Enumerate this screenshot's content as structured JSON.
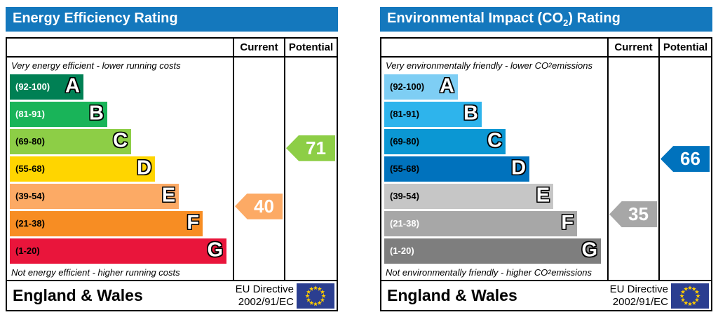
{
  "charts": [
    {
      "title": {
        "pre": "Energy Efficiency Rating",
        "sub": "",
        "post": ""
      },
      "header_color": "#1478bd",
      "columns": {
        "current": "Current",
        "potential": "Potential"
      },
      "top_caption": {
        "pre": "Very energy efficient - lower running costs",
        "sub": "",
        "post": ""
      },
      "bottom_caption": {
        "pre": "Not energy efficient - higher running costs",
        "sub": "",
        "post": ""
      },
      "bands": [
        {
          "letter": "A",
          "range": "(92-100)",
          "min": 92,
          "max": 100,
          "color": "#008054",
          "label_color": "#ffffff"
        },
        {
          "letter": "B",
          "range": "(81-91)",
          "min": 81,
          "max": 91,
          "color": "#19b459",
          "label_color": "#ffffff"
        },
        {
          "letter": "C",
          "range": "(69-80)",
          "min": 69,
          "max": 80,
          "color": "#8dce46",
          "label_color": "#000000"
        },
        {
          "letter": "D",
          "range": "(55-68)",
          "min": 55,
          "max": 68,
          "color": "#ffd500",
          "label_color": "#000000"
        },
        {
          "letter": "E",
          "range": "(39-54)",
          "min": 39,
          "max": 54,
          "color": "#fcaa65",
          "label_color": "#000000"
        },
        {
          "letter": "F",
          "range": "(21-38)",
          "min": 21,
          "max": 38,
          "color": "#f78d23",
          "label_color": "#000000"
        },
        {
          "letter": "G",
          "range": "(1-20)",
          "min": 1,
          "max": 20,
          "color": "#e9153b",
          "label_color": "#000000"
        }
      ],
      "current": {
        "value": 40,
        "color": "#fcaa65"
      },
      "potential": {
        "value": 71,
        "color": "#8dce46"
      },
      "footer": {
        "region": "England & Wales",
        "directive_line1": "EU Directive",
        "directive_line2": "2002/91/EC"
      },
      "flag": {
        "name": "eu-flag-icon",
        "bg": "#2b3e90",
        "star_color": "#ffcc00"
      }
    },
    {
      "title": {
        "pre": "Environmental Impact (CO",
        "sub": "2",
        "post": ") Rating"
      },
      "header_color": "#1478bd",
      "columns": {
        "current": "Current",
        "potential": "Potential"
      },
      "top_caption": {
        "pre": "Very environmentally friendly - lower CO",
        "sub": "2",
        "post": " emissions"
      },
      "bottom_caption": {
        "pre": "Not environmentally friendly - higher CO",
        "sub": "2",
        "post": " emissions"
      },
      "bands": [
        {
          "letter": "A",
          "range": "(92-100)",
          "min": 92,
          "max": 100,
          "color": "#7ecef4",
          "label_color": "#000000"
        },
        {
          "letter": "B",
          "range": "(81-91)",
          "min": 81,
          "max": 91,
          "color": "#2eb4ec",
          "label_color": "#000000"
        },
        {
          "letter": "C",
          "range": "(69-80)",
          "min": 69,
          "max": 80,
          "color": "#0b97d3",
          "label_color": "#000000"
        },
        {
          "letter": "D",
          "range": "(55-68)",
          "min": 55,
          "max": 68,
          "color": "#0072bd",
          "label_color": "#000000"
        },
        {
          "letter": "E",
          "range": "(39-54)",
          "min": 39,
          "max": 54,
          "color": "#c6c6c6",
          "label_color": "#000000"
        },
        {
          "letter": "F",
          "range": "(21-38)",
          "min": 21,
          "max": 38,
          "color": "#a7a7a7",
          "label_color": "#ffffff"
        },
        {
          "letter": "G",
          "range": "(1-20)",
          "min": 1,
          "max": 20,
          "color": "#7e7e7e",
          "label_color": "#ffffff"
        }
      ],
      "current": {
        "value": 35,
        "color": "#a7a7a7"
      },
      "potential": {
        "value": 66,
        "color": "#0072bd"
      },
      "footer": {
        "region": "England & Wales",
        "directive_line1": "EU Directive",
        "directive_line2": "2002/91/EC"
      },
      "flag": {
        "name": "eu-flag-icon",
        "bg": "#2b3e90",
        "star_color": "#ffcc00"
      }
    }
  ],
  "chart_data": [
    {
      "type": "bar",
      "title": "Energy Efficiency Rating",
      "categories": [
        "A (92-100)",
        "B (81-91)",
        "C (69-80)",
        "D (55-68)",
        "E (39-54)",
        "F (21-38)",
        "G (1-20)"
      ],
      "series": [
        {
          "name": "Current",
          "values": [
            40
          ],
          "band": "E"
        },
        {
          "name": "Potential",
          "values": [
            71
          ],
          "band": "C"
        }
      ],
      "scale": [
        1,
        100
      ],
      "top_caption": "Very energy efficient - lower running costs",
      "bottom_caption": "Not energy efficient - higher running costs",
      "footer": "England & Wales | EU Directive 2002/91/EC"
    },
    {
      "type": "bar",
      "title": "Environmental Impact (CO2) Rating",
      "categories": [
        "A (92-100)",
        "B (81-91)",
        "C (69-80)",
        "D (55-68)",
        "E (39-54)",
        "F (21-38)",
        "G (1-20)"
      ],
      "series": [
        {
          "name": "Current",
          "values": [
            35
          ],
          "band": "F"
        },
        {
          "name": "Potential",
          "values": [
            66
          ],
          "band": "D"
        }
      ],
      "scale": [
        1,
        100
      ],
      "top_caption": "Very environmentally friendly - lower CO2 emissions",
      "bottom_caption": "Not environmentally friendly - higher CO2 emissions",
      "footer": "England & Wales | EU Directive 2002/91/EC"
    }
  ]
}
